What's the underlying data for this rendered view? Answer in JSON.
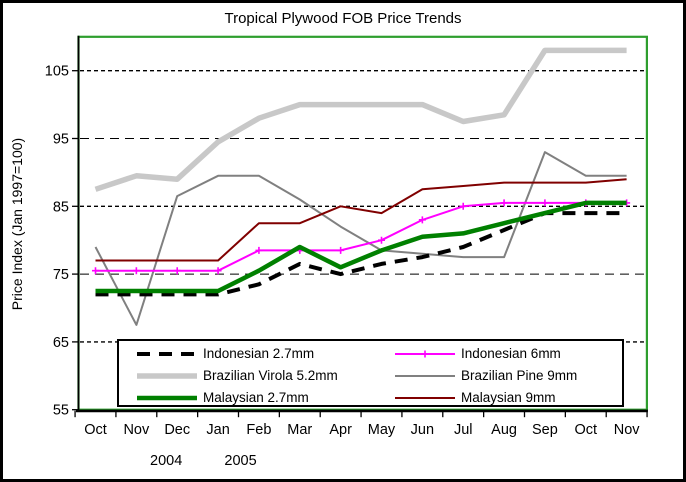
{
  "window": {
    "title": "Tropical Plywood FOB Price Trends"
  },
  "chart_data": {
    "type": "line",
    "title": "Tropical Plywood FOB Price Trends",
    "ylabel": "Price Index (Jan 1997=100)",
    "xlabel": "",
    "categories": [
      "Oct",
      "Nov",
      "Dec",
      "Jan",
      "Feb",
      "Mar",
      "Apr",
      "May",
      "Jun",
      "Jul",
      "Aug",
      "Sep",
      "Oct",
      "Nov"
    ],
    "year_labels": [
      {
        "label": "2004",
        "under_month_index": 1.73
      },
      {
        "label": "2005",
        "under_month_index": 3.55
      }
    ],
    "ylim": [
      55,
      110
    ],
    "yticks": [
      55,
      65,
      75,
      85,
      95,
      105
    ],
    "grid": "horizontal-dashed",
    "legend_position": "bottom-inside",
    "plot_border_color": "#2e9e2e",
    "axis_color": "#000000",
    "background_color": "#ffffff",
    "series": [
      {
        "name": "Brazilian Virola 5.2mm",
        "color": "#c8c8c8",
        "width": 5.5,
        "dash": "",
        "marker": "",
        "values": [
          87.5,
          89.5,
          89,
          94.5,
          98,
          100,
          100,
          100,
          100,
          97.5,
          98.5,
          108,
          108,
          108
        ]
      },
      {
        "name": "Brazilian Pine 9mm",
        "color": "#808080",
        "width": 2,
        "dash": "",
        "marker": "",
        "values": [
          79,
          67.5,
          86.5,
          89.5,
          89.5,
          86,
          82,
          78.5,
          78,
          77.5,
          77.5,
          93,
          89.5,
          89.5
        ]
      },
      {
        "name": "Malaysian 9mm",
        "color": "#800000",
        "width": 2,
        "dash": "",
        "marker": "",
        "values": [
          77,
          77,
          77,
          77,
          82.5,
          82.5,
          85,
          84,
          87.5,
          88,
          88.5,
          88.5,
          88.5,
          89
        ]
      },
      {
        "name": "Indonesian 6mm",
        "color": "#ff00ff",
        "width": 2,
        "dash": "",
        "marker": "plus",
        "values": [
          75.5,
          75.5,
          75.5,
          75.5,
          78.5,
          78.5,
          78.5,
          80,
          83,
          85,
          85.5,
          85.5,
          85.5,
          85.5
        ]
      },
      {
        "name": "Indonesian 2.7mm",
        "color": "#000000",
        "width": 4,
        "dash": "13 9",
        "marker": "",
        "values": [
          72,
          72,
          72,
          72,
          73.5,
          76.5,
          75,
          76.5,
          77.5,
          79,
          81.5,
          84,
          84,
          84
        ]
      },
      {
        "name": "Malaysian 2.7mm",
        "color": "#008000",
        "width": 4.5,
        "dash": "",
        "marker": "",
        "values": [
          72.5,
          72.5,
          72.5,
          72.5,
          75.5,
          79,
          76,
          78.5,
          80.5,
          81,
          82.5,
          84,
          85.5,
          85.5
        ]
      }
    ],
    "legend_order": [
      "Indonesian 2.7mm",
      "Indonesian 6mm",
      "Brazilian Virola 5.2mm",
      "Brazilian Pine 9mm",
      "Malaysian 2.7mm",
      "Malaysian 9mm"
    ]
  }
}
